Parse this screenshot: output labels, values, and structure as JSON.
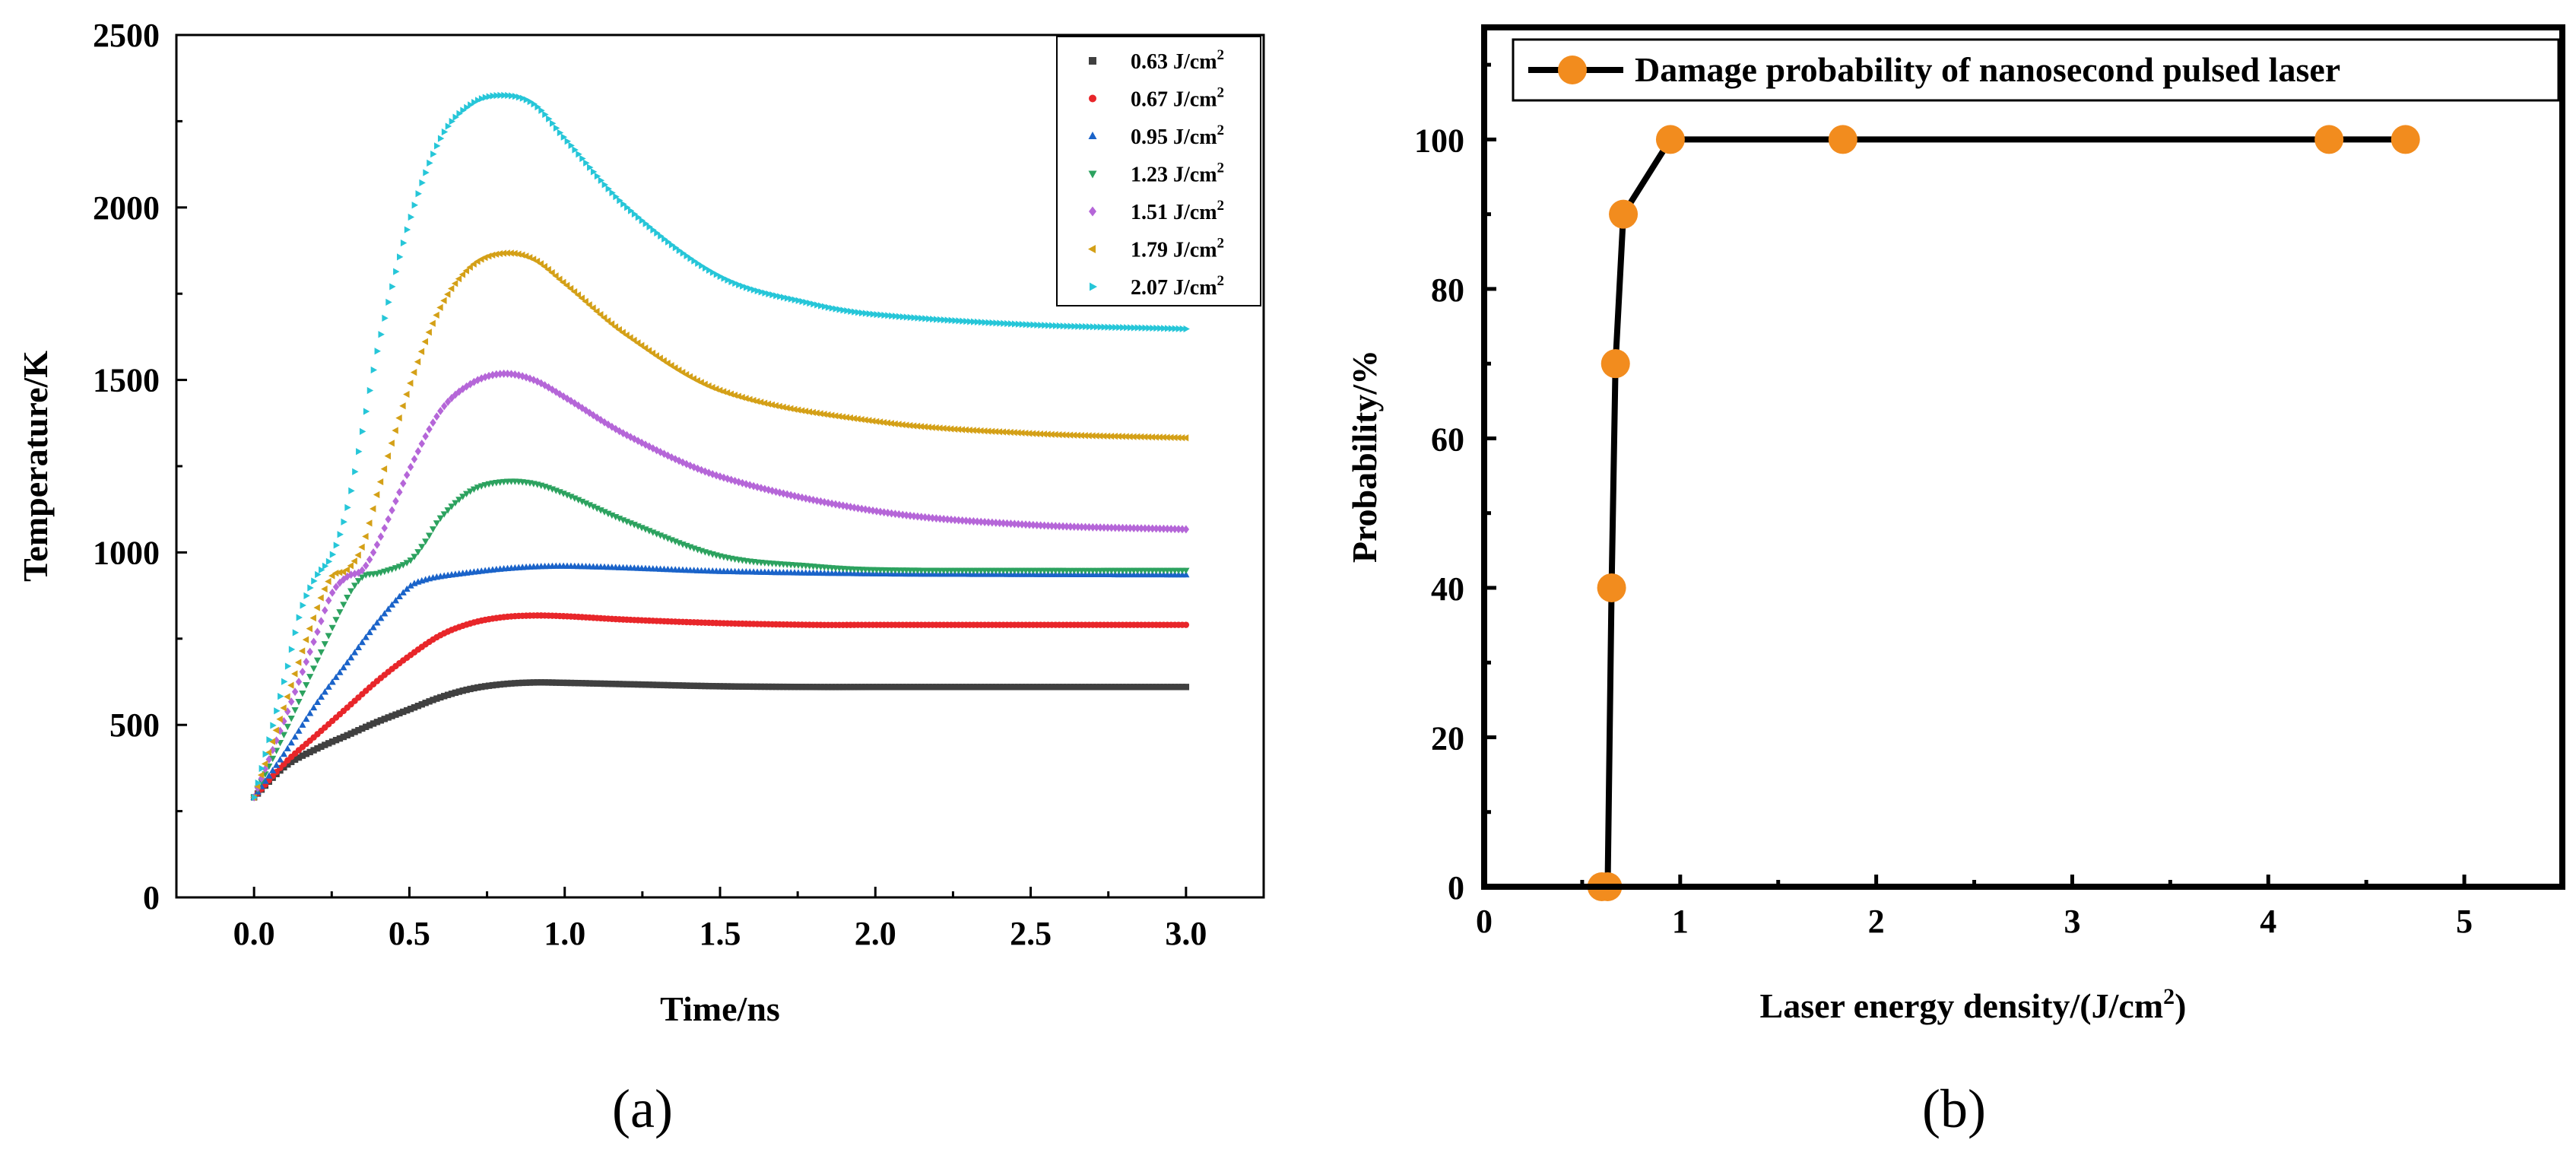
{
  "chart_data": [
    {
      "type": "scatter",
      "panel_label": "(a)",
      "xlabel": "Time/ns",
      "ylabel": "Temperature/K",
      "xlim": [
        -0.25,
        3.25
      ],
      "ylim": [
        0,
        2500
      ],
      "x_ticks": [
        0.0,
        0.5,
        1.0,
        1.5,
        2.0,
        2.5,
        3.0
      ],
      "x_tick_labels": [
        "0.0",
        "0.5",
        "1.0",
        "1.5",
        "2.0",
        "2.5",
        "3.0"
      ],
      "y_ticks": [
        0,
        500,
        1000,
        1500,
        2000,
        2500
      ],
      "y_tick_labels": [
        "0",
        "500",
        "1000",
        "1500",
        "2000",
        "2500"
      ],
      "legend_position": "top-right",
      "series": [
        {
          "name": "0.63 J/cm",
          "sup": "2",
          "color": "#404040",
          "marker": "square",
          "x": [
            0.0,
            0.1,
            0.2,
            0.3,
            0.4,
            0.5,
            0.6,
            0.7,
            0.8,
            0.9,
            1.0,
            1.2,
            1.5,
            1.8,
            2.0,
            2.5,
            3.0
          ],
          "y": [
            290,
            380,
            430,
            470,
            510,
            545,
            580,
            605,
            618,
            623,
            622,
            618,
            612,
            610,
            610,
            610,
            610
          ]
        },
        {
          "name": "0.67 J/cm",
          "sup": "2",
          "color": "#e8262a",
          "marker": "circle",
          "x": [
            0.0,
            0.1,
            0.2,
            0.3,
            0.4,
            0.5,
            0.6,
            0.7,
            0.8,
            0.9,
            1.0,
            1.2,
            1.5,
            1.8,
            2.0,
            2.5,
            3.0
          ],
          "y": [
            290,
            390,
            470,
            550,
            630,
            700,
            760,
            795,
            812,
            817,
            815,
            805,
            795,
            790,
            790,
            790,
            790
          ]
        },
        {
          "name": "0.95 J/cm",
          "sup": "2",
          "color": "#1a63c9",
          "marker": "triangle-up",
          "x": [
            0.0,
            0.1,
            0.2,
            0.3,
            0.4,
            0.5,
            0.55,
            0.6,
            0.7,
            0.8,
            0.9,
            1.0,
            1.2,
            1.5,
            2.0,
            2.5,
            3.0
          ],
          "y": [
            290,
            420,
            560,
            680,
            800,
            900,
            920,
            930,
            942,
            952,
            958,
            960,
            955,
            945,
            938,
            936,
            935
          ]
        },
        {
          "name": "1.23 J/cm",
          "sup": "2",
          "color": "#2ca25f",
          "marker": "triangle-down",
          "x": [
            0.0,
            0.1,
            0.2,
            0.3,
            0.35,
            0.4,
            0.5,
            0.55,
            0.6,
            0.7,
            0.8,
            0.9,
            1.0,
            1.2,
            1.5,
            1.8,
            2.0,
            2.5,
            3.0
          ],
          "y": [
            290,
            480,
            680,
            870,
            930,
            940,
            975,
            1030,
            1100,
            1180,
            1205,
            1200,
            1170,
            1090,
            990,
            960,
            950,
            948,
            948
          ]
        },
        {
          "name": "1.51 J/cm",
          "sup": "2",
          "color": "#b566d8",
          "marker": "diamond",
          "x": [
            0.0,
            0.1,
            0.2,
            0.25,
            0.3,
            0.35,
            0.4,
            0.5,
            0.6,
            0.7,
            0.8,
            0.9,
            1.0,
            1.2,
            1.5,
            2.0,
            2.5,
            3.0
          ],
          "y": [
            290,
            520,
            760,
            880,
            930,
            950,
            1030,
            1240,
            1410,
            1490,
            1518,
            1500,
            1450,
            1340,
            1220,
            1120,
            1080,
            1067
          ]
        },
        {
          "name": "1.79 J/cm",
          "sup": "2",
          "color": "#d4a017",
          "marker": "triangle-left",
          "x": [
            0.0,
            0.1,
            0.2,
            0.25,
            0.3,
            0.35,
            0.4,
            0.5,
            0.6,
            0.7,
            0.8,
            0.9,
            1.0,
            1.2,
            1.5,
            2.0,
            2.5,
            3.0
          ],
          "y": [
            290,
            560,
            830,
            930,
            950,
            1020,
            1180,
            1480,
            1710,
            1830,
            1867,
            1850,
            1780,
            1630,
            1470,
            1380,
            1345,
            1332
          ]
        },
        {
          "name": "2.07 J/cm",
          "sup": "2",
          "color": "#26c6d8",
          "marker": "triangle-right",
          "x": [
            0.0,
            0.1,
            0.15,
            0.2,
            0.25,
            0.3,
            0.35,
            0.4,
            0.5,
            0.6,
            0.7,
            0.8,
            0.9,
            1.0,
            1.2,
            1.5,
            1.8,
            2.0,
            2.5,
            3.0
          ],
          "y": [
            290,
            640,
            830,
            930,
            990,
            1130,
            1360,
            1600,
            1960,
            2200,
            2300,
            2325,
            2300,
            2200,
            2000,
            1800,
            1720,
            1690,
            1660,
            1648
          ]
        }
      ]
    },
    {
      "type": "line",
      "panel_label": "(b)",
      "xlabel": "Laser energy density/(J/cm",
      "xlabel_sup": "2",
      "xlabel_end": ")",
      "ylabel": "Probability/%",
      "xlim": [
        0,
        5.5
      ],
      "ylim": [
        0,
        115
      ],
      "x_ticks": [
        0,
        1,
        2,
        3,
        4,
        5
      ],
      "x_tick_labels": [
        "0",
        "1",
        "2",
        "3",
        "4",
        "5"
      ],
      "y_ticks": [
        0,
        20,
        40,
        60,
        80,
        100
      ],
      "y_tick_labels": [
        "0",
        "20",
        "40",
        "60",
        "80",
        "100"
      ],
      "legend_position": "top-left",
      "series": [
        {
          "name": "Damage probability of nanosecond pulsed laser",
          "line_color": "#000000",
          "marker_color": "#f28c1e",
          "x": [
            0.6,
            0.63,
            0.65,
            0.67,
            0.71,
            0.95,
            1.83,
            4.31,
            4.7
          ],
          "y": [
            0,
            0,
            40,
            70,
            90,
            100,
            100,
            100,
            100
          ]
        }
      ]
    }
  ]
}
